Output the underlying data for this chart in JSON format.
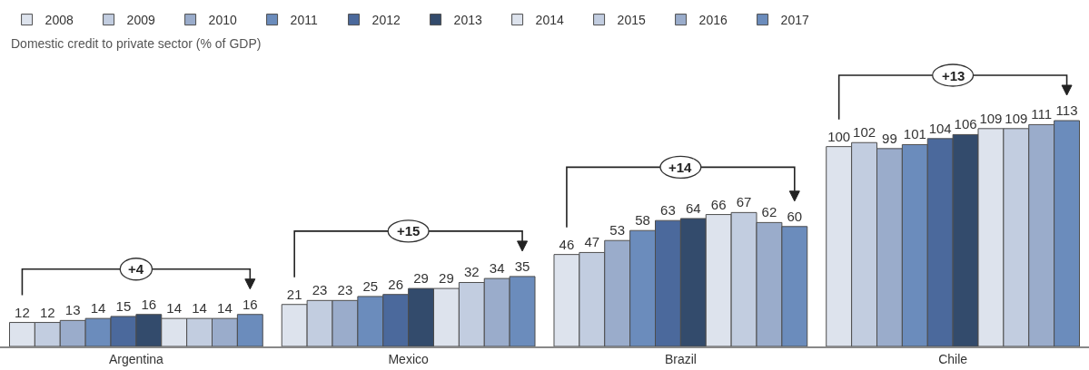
{
  "chart_data": {
    "type": "bar",
    "subtitle": "Domestic credit to private sector (% of GDP)",
    "categories": [
      "Argentina",
      "Mexico",
      "Brazil",
      "Chile"
    ],
    "series": [
      {
        "name": "2008",
        "color": "#dde3ed",
        "values": [
          12,
          21,
          46,
          100
        ]
      },
      {
        "name": "2009",
        "color": "#c2cde0",
        "values": [
          12,
          23,
          47,
          102
        ]
      },
      {
        "name": "2010",
        "color": "#9aaccb",
        "values": [
          13,
          23,
          53,
          99
        ]
      },
      {
        "name": "2011",
        "color": "#6b8cbc",
        "values": [
          14,
          25,
          58,
          101
        ]
      },
      {
        "name": "2012",
        "color": "#4b699c",
        "values": [
          15,
          26,
          63,
          104
        ]
      },
      {
        "name": "2013",
        "color": "#334b6c",
        "values": [
          16,
          29,
          64,
          106
        ]
      },
      {
        "name": "2014",
        "color": "#dde3ed",
        "values": [
          14,
          29,
          66,
          109
        ]
      },
      {
        "name": "2015",
        "color": "#c2cde0",
        "values": [
          14,
          32,
          67,
          109
        ]
      },
      {
        "name": "2016",
        "color": "#9aaccb",
        "values": [
          14,
          34,
          62,
          111
        ]
      },
      {
        "name": "2017",
        "color": "#6b8cbc",
        "values": [
          16,
          35,
          60,
          113
        ]
      }
    ],
    "data_labels": true,
    "tick_labels": "x",
    "legend": "top left",
    "annotations": [
      "+4",
      "+15",
      "+14",
      "+13"
    ]
  }
}
